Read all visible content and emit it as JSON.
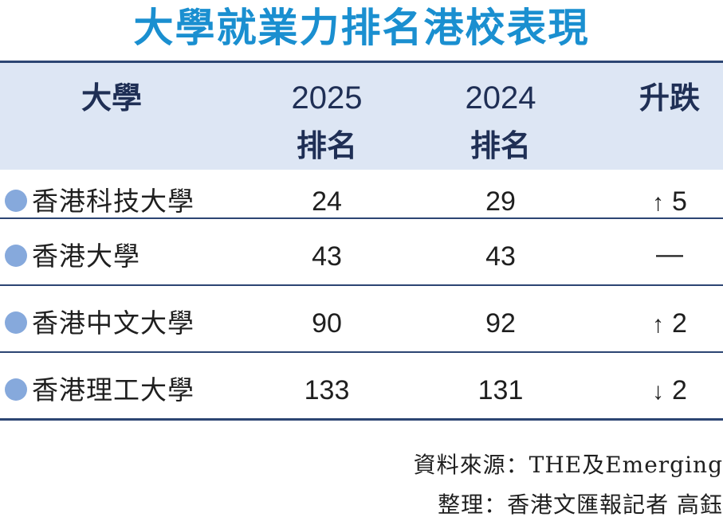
{
  "title": "大學就業力排名港校表現",
  "header": {
    "university": "大學",
    "rank2025_year": "2025",
    "rank2025_label": "排名",
    "rank2024_year": "2024",
    "rank2024_label": "排名",
    "change": "升跌"
  },
  "rows": [
    {
      "name": "香港科技大學",
      "rank2025": "24",
      "rank2024": "29",
      "arrow": "↑",
      "change": "5"
    },
    {
      "name": "香港大學",
      "rank2025": "43",
      "rank2024": "43",
      "arrow": "",
      "change": "—"
    },
    {
      "name": "香港中文大學",
      "rank2025": "90",
      "rank2024": "92",
      "arrow": "↑",
      "change": "2"
    },
    {
      "name": "香港理工大學",
      "rank2025": "133",
      "rank2024": "131",
      "arrow": "↓",
      "change": "2"
    }
  ],
  "footer": {
    "source": "資料來源：THE及Emerging",
    "credit": "整理：香港文匯報記者 高鈺"
  },
  "colors": {
    "title": "#1a8fd0",
    "header_bg": "#dde6f4",
    "rule": "#2c4573",
    "bullet": "#86a9dc"
  }
}
